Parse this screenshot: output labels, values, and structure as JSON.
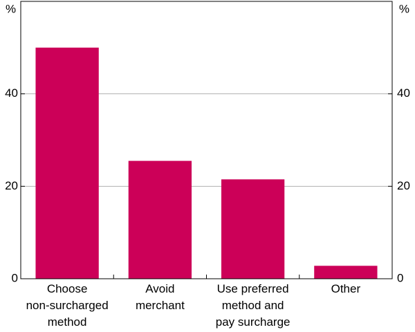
{
  "chart_data": {
    "type": "bar",
    "y_unit": "%",
    "categories": [
      "Choose\nnon-surcharged\nmethod",
      "Avoid\nmerchant",
      "Use preferred\nmethod and\npay surcharge",
      "Other"
    ],
    "values": [
      50,
      25.5,
      21.5,
      2.8
    ],
    "color": "#cc0058",
    "ylim": [
      0,
      60
    ],
    "yticks": [
      0,
      20,
      40
    ],
    "grid": true
  }
}
